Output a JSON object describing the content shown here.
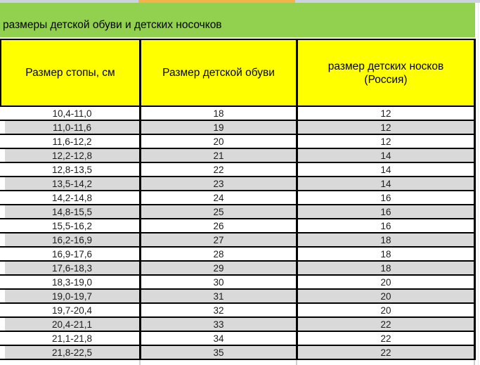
{
  "title_bar": {
    "text": "размеры детской обуви и детских носочков"
  },
  "table": {
    "headers": {
      "col1": "Размер стопы, см",
      "col2": "Размер детской обуви",
      "col3_line1": "размер детских носков",
      "col3_line2": "(Россия)"
    },
    "rows": [
      {
        "foot_cm": "10,4-11,0",
        "shoe_size": "18",
        "sock_size": "12"
      },
      {
        "foot_cm": "11,0-11,6",
        "shoe_size": "19",
        "sock_size": "12"
      },
      {
        "foot_cm": "11,6-12,2",
        "shoe_size": "20",
        "sock_size": "12"
      },
      {
        "foot_cm": "12,2-12,8",
        "shoe_size": "21",
        "sock_size": "14"
      },
      {
        "foot_cm": "12,8-13,5",
        "shoe_size": "22",
        "sock_size": "14"
      },
      {
        "foot_cm": "13,5-14,2",
        "shoe_size": "23",
        "sock_size": "14"
      },
      {
        "foot_cm": "14,2-14,8",
        "shoe_size": "24",
        "sock_size": "16"
      },
      {
        "foot_cm": "14,8-15,5",
        "shoe_size": "25",
        "sock_size": "16"
      },
      {
        "foot_cm": "15,5-16,2",
        "shoe_size": "26",
        "sock_size": "16"
      },
      {
        "foot_cm": "16,2-16,9",
        "shoe_size": "27",
        "sock_size": "18"
      },
      {
        "foot_cm": "16,9-17,6",
        "shoe_size": "28",
        "sock_size": "18"
      },
      {
        "foot_cm": "17,6-18,3",
        "shoe_size": "29",
        "sock_size": "18"
      },
      {
        "foot_cm": "18,3-19,0",
        "shoe_size": "30",
        "sock_size": "20"
      },
      {
        "foot_cm": "19,0-19,7",
        "shoe_size": "31",
        "sock_size": "20"
      },
      {
        "foot_cm": "19,7-20,4",
        "shoe_size": "32",
        "sock_size": "20"
      },
      {
        "foot_cm": "20,4-21,1",
        "shoe_size": "33",
        "sock_size": "22"
      },
      {
        "foot_cm": "21,1-21,8",
        "shoe_size": "34",
        "sock_size": "22"
      },
      {
        "foot_cm": "21,8-22,5",
        "shoe_size": "35",
        "sock_size": "22"
      }
    ]
  },
  "colors": {
    "title_bar_green": "#92d050",
    "header_yellow": "#ffff00",
    "row_alt_gray": "#d9d9d9",
    "row_white": "#ffffff",
    "border_black": "#000000",
    "top_strip_gray": "#ccd3e0",
    "top_strip_orange": "#f2b34c",
    "error_indicator_green": "#1e7145"
  }
}
